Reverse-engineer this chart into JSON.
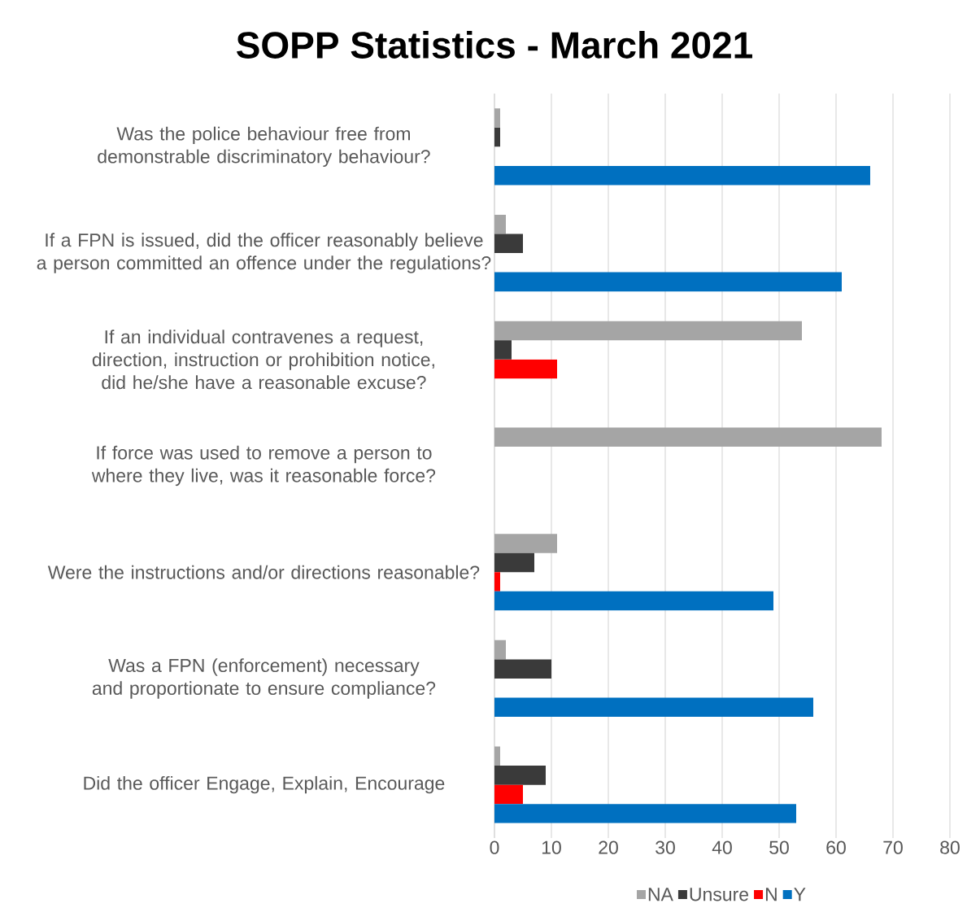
{
  "chart_data": {
    "type": "bar",
    "orientation": "horizontal",
    "title": "SOPP Statistics - March 2021",
    "categories": [
      "Was the police behaviour free from demonstrable discriminatory behaviour?",
      "If a FPN is issued, did the officer reasonably believe a person committed an offence under the regulations?",
      "If an individual contravenes a request, direction, instruction or prohibition notice, did he/she have a reasonable excuse?",
      "If force was used to remove a person to where they live, was it reasonable force?",
      "Were the instructions and/or directions reasonable?",
      "Was a FPN (enforcement) necessary and proportionate to ensure compliance?",
      "Did the officer Engage, Explain, Encourage"
    ],
    "series": [
      {
        "name": "NA",
        "color": "#a5a5a5",
        "values": [
          1,
          2,
          54,
          68,
          11,
          2,
          1
        ]
      },
      {
        "name": "Unsure",
        "color": "#3a3a3a",
        "values": [
          1,
          5,
          3,
          null,
          7,
          10,
          9
        ]
      },
      {
        "name": "N",
        "color": "#ff0000",
        "values": [
          null,
          null,
          11,
          null,
          1,
          null,
          5
        ]
      },
      {
        "name": "Y",
        "color": "#0070c0",
        "values": [
          66,
          61,
          null,
          null,
          49,
          56,
          53
        ]
      }
    ],
    "xlim": [
      0,
      80
    ],
    "xticks": [
      0,
      10,
      20,
      30,
      40,
      50,
      60,
      70,
      80
    ],
    "grid": "x",
    "legend": "bottom"
  }
}
